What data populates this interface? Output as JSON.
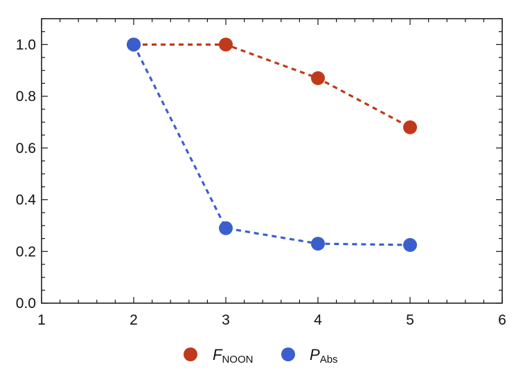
{
  "chart_data": {
    "type": "line",
    "title": "",
    "xlabel": "",
    "ylabel": "",
    "xlim": [
      1,
      6
    ],
    "ylim": [
      0,
      1.1
    ],
    "x_ticks": [
      1,
      2,
      3,
      4,
      5,
      6
    ],
    "y_ticks": [
      0,
      0.2,
      0.4,
      0.6,
      0.8,
      1.0
    ],
    "x_tick_labels": [
      "1",
      "2",
      "3",
      "4",
      "5",
      "6"
    ],
    "y_tick_labels": [
      "0.0",
      "0.2",
      "0.4",
      "0.6",
      "0.8",
      "1.0"
    ],
    "grid": false,
    "legend_position": "bottom",
    "line_style": "dashed",
    "series": [
      {
        "name": "F_NOON",
        "legend_main": "F",
        "legend_sub": "NOON",
        "color": "#c0391b",
        "x": [
          2,
          3,
          4,
          5
        ],
        "y": [
          1.0,
          1.0,
          0.87,
          0.68
        ]
      },
      {
        "name": "P_Abs",
        "legend_main": "P",
        "legend_sub": "Abs",
        "color": "#3a5fcd",
        "x": [
          2,
          3,
          4,
          5
        ],
        "y": [
          1.0,
          0.29,
          0.23,
          0.225
        ]
      }
    ]
  }
}
